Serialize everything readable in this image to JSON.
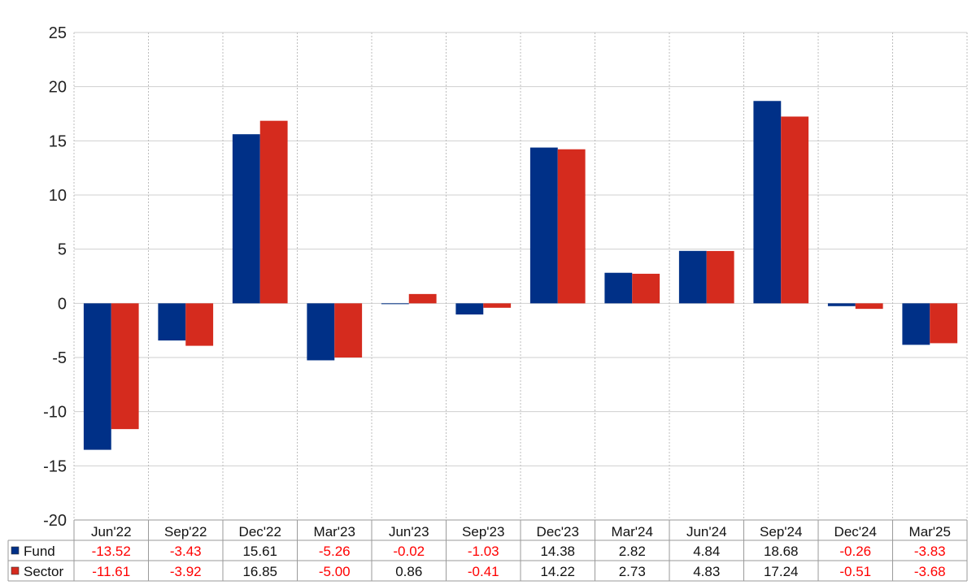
{
  "chart_data": {
    "type": "bar",
    "categories": [
      "Jun'22",
      "Sep'22",
      "Dec'22",
      "Mar'23",
      "Jun'23",
      "Sep'23",
      "Dec'23",
      "Mar'24",
      "Jun'24",
      "Sep'24",
      "Dec'24",
      "Mar'25"
    ],
    "series": [
      {
        "name": "Fund",
        "color": "#003087",
        "values": [
          -13.52,
          -3.43,
          15.61,
          -5.26,
          -0.02,
          -1.03,
          14.38,
          2.82,
          4.84,
          18.68,
          -0.26,
          -3.83
        ],
        "labels": [
          "-13.52",
          "-3.43",
          "15.61",
          "-5.26",
          "-0.02",
          "-1.03",
          "14.38",
          "2.82",
          "4.84",
          "18.68",
          "-0.26",
          "-3.83"
        ]
      },
      {
        "name": "Sector",
        "color": "#d52b1e",
        "values": [
          -11.61,
          -3.92,
          16.85,
          -5.0,
          0.86,
          -0.41,
          14.22,
          2.73,
          4.83,
          17.24,
          -0.51,
          -3.68
        ],
        "labels": [
          "-11.61",
          "-3.92",
          "16.85",
          "-5.00",
          "0.86",
          "-0.41",
          "14.22",
          "2.73",
          "4.83",
          "17.24",
          "-0.51",
          "-3.68"
        ]
      }
    ],
    "title": "",
    "xlabel": "",
    "ylabel": "",
    "ylim": [
      -20,
      25
    ],
    "yticks": [
      "25",
      "20",
      "15",
      "10",
      "5",
      "0",
      "-5",
      "-10",
      "-15",
      "-20"
    ],
    "grid": true,
    "legend": "bottom-left table",
    "negative_value_color": "#ff0000",
    "positive_value_color": "#111111"
  }
}
